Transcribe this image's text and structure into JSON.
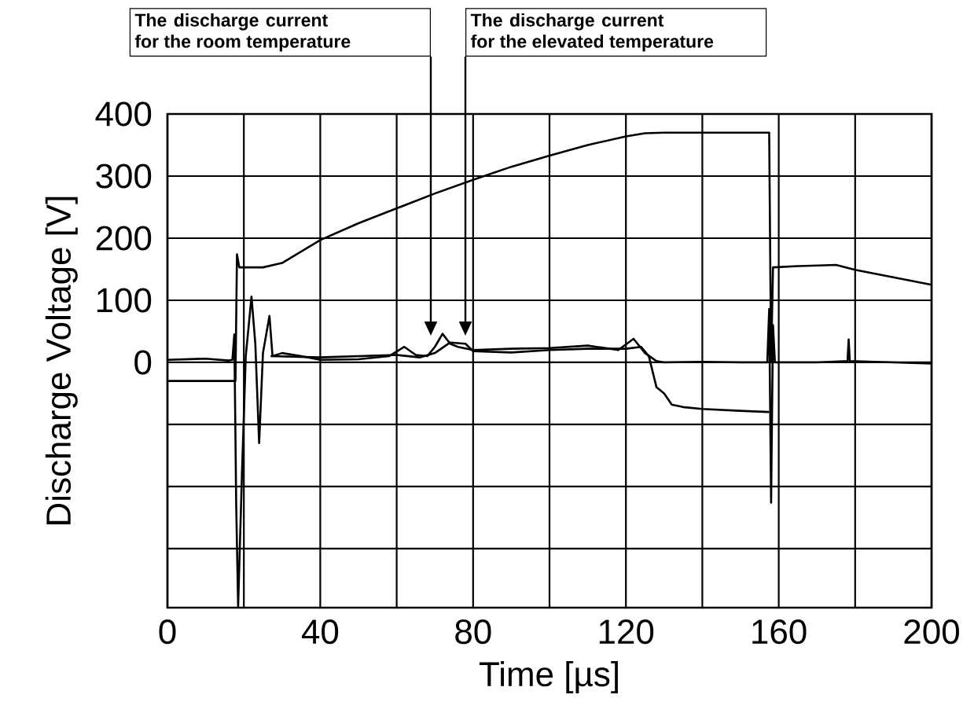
{
  "chart_data": {
    "type": "line",
    "xlabel": "Time [µs]",
    "ylabel": "Discharge Voltage [V]",
    "xlim": [
      0,
      200
    ],
    "ylim": [
      -395,
      400
    ],
    "xticks": [
      0,
      {
        "value": 20,
        "label": null
      },
      40,
      {
        "value": 60,
        "label": null
      },
      80,
      {
        "value": 100,
        "label": null
      },
      120,
      {
        "value": 140,
        "label": null
      },
      160,
      {
        "value": 180,
        "label": null
      },
      200
    ],
    "yticks": [
      {
        "value": -300,
        "label": null
      },
      {
        "value": -200,
        "label": null
      },
      {
        "value": -100,
        "label": null
      },
      0,
      100,
      200,
      300,
      400
    ],
    "grid": true,
    "annotations": [
      "The discharge current for the room temperature",
      "The discharge current for the elevated temperature"
    ],
    "series": [
      {
        "color": "#000000",
        "x": [
          0,
          17.8,
          18.2,
          18.8,
          25,
          30,
          40,
          50,
          60,
          70,
          80,
          90,
          100,
          110,
          120,
          125,
          130,
          157.5,
          158,
          158.5,
          165,
          175,
          180,
          190,
          200
        ],
        "values": [
          -30,
          -30,
          174,
          153,
          153,
          160,
          197,
          224,
          248,
          272,
          294,
          315,
          333,
          350,
          364,
          369,
          370,
          370,
          0,
          153,
          155,
          157,
          149,
          137,
          125
        ]
      },
      {
        "color": "#000000",
        "x": [
          0,
          10,
          16,
          17,
          17.5,
          18,
          18.5,
          19.5,
          20.5,
          22,
          23,
          24,
          25,
          26.7,
          27.5,
          30,
          35,
          40,
          50,
          58,
          62,
          65,
          68,
          70,
          72,
          74,
          76,
          80,
          90,
          100,
          110,
          118,
          122,
          125,
          128,
          130,
          140,
          150,
          157,
          157.5,
          158,
          158.5,
          159,
          170,
          178,
          178.3,
          178.6,
          190,
          200
        ],
        "values": [
          4,
          6,
          3,
          4,
          45,
          -230,
          -393,
          -180,
          10,
          106,
          30,
          -130,
          15,
          75,
          10,
          15,
          10,
          4,
          5,
          10,
          25,
          12,
          10,
          25,
          46,
          30,
          25,
          20,
          22,
          23,
          27,
          20,
          38,
          15,
          2,
          0,
          1,
          0,
          0,
          86,
          -226,
          60,
          0,
          0,
          2,
          37,
          2,
          0,
          -2
        ]
      },
      {
        "color": "#000000",
        "x": [
          27,
          40,
          60,
          66,
          70,
          74,
          78,
          80,
          90,
          100,
          110,
          120,
          124,
          126,
          128,
          130,
          132,
          135,
          140,
          150,
          157.5
        ],
        "values": [
          10,
          8,
          12,
          8,
          15,
          32,
          30,
          18,
          16,
          20,
          22,
          22,
          25,
          10,
          -40,
          -50,
          -68,
          -72,
          -75,
          -78,
          -80
        ]
      }
    ]
  }
}
